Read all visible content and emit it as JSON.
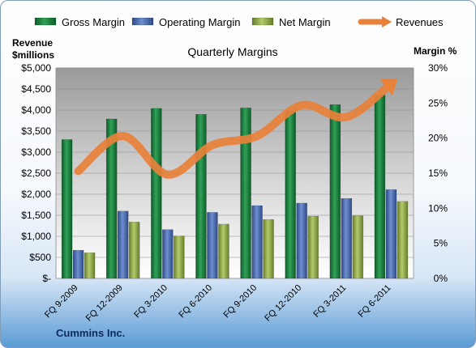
{
  "chart_data": {
    "type": "bar",
    "title": "Quarterly Margins",
    "footer": "Cummins Inc.",
    "categories": [
      "FQ 9-2009",
      "FQ 12-2009",
      "FQ 3-2010",
      "FQ 6-2010",
      "FQ 9-2010",
      "FQ 12-2010",
      "FQ 3-2011",
      "FQ 6-2011"
    ],
    "series": [
      {
        "name": "Gross Margin",
        "kind": "bar",
        "axis": "left",
        "color": "#1e7f3f",
        "values": [
          3300,
          3790,
          4040,
          3900,
          4050,
          3980,
          4130,
          4360
        ]
      },
      {
        "name": "Operating Margin",
        "kind": "bar",
        "axis": "left",
        "color": "#4f6fb3",
        "values": [
          670,
          1600,
          1160,
          1570,
          1730,
          1790,
          1900,
          2110
        ]
      },
      {
        "name": "Net Margin",
        "kind": "bar",
        "axis": "left",
        "color": "#93ad4e",
        "values": [
          610,
          1340,
          1010,
          1290,
          1400,
          1480,
          1490,
          1830
        ]
      },
      {
        "name": "Revenues",
        "kind": "line",
        "axis": "right",
        "color": "#e8813a",
        "values": [
          15.3,
          20.3,
          14.8,
          19.0,
          20.3,
          24.7,
          23.0,
          27.8
        ]
      }
    ],
    "ylabel_left": [
      "Revenue",
      "$millions"
    ],
    "ylabel_right": "Margin %",
    "ylim_left": [
      0,
      5000
    ],
    "ylim_right": [
      0,
      30
    ],
    "yticks_left": [
      0,
      500,
      1000,
      1500,
      2000,
      2500,
      3000,
      3500,
      4000,
      4500,
      5000
    ],
    "ytick_labels_left": [
      "$-",
      "$500",
      "$1,000",
      "$1,500",
      "$2,000",
      "$2,500",
      "$3,000",
      "$3,500",
      "$4,000",
      "$4,500",
      "$5,000"
    ],
    "yticks_right": [
      0,
      5,
      10,
      15,
      20,
      25,
      30
    ],
    "ytick_labels_right": [
      "0%",
      "5%",
      "10%",
      "15%",
      "20%",
      "25%",
      "30%"
    ],
    "grid": true,
    "legend": "top"
  }
}
